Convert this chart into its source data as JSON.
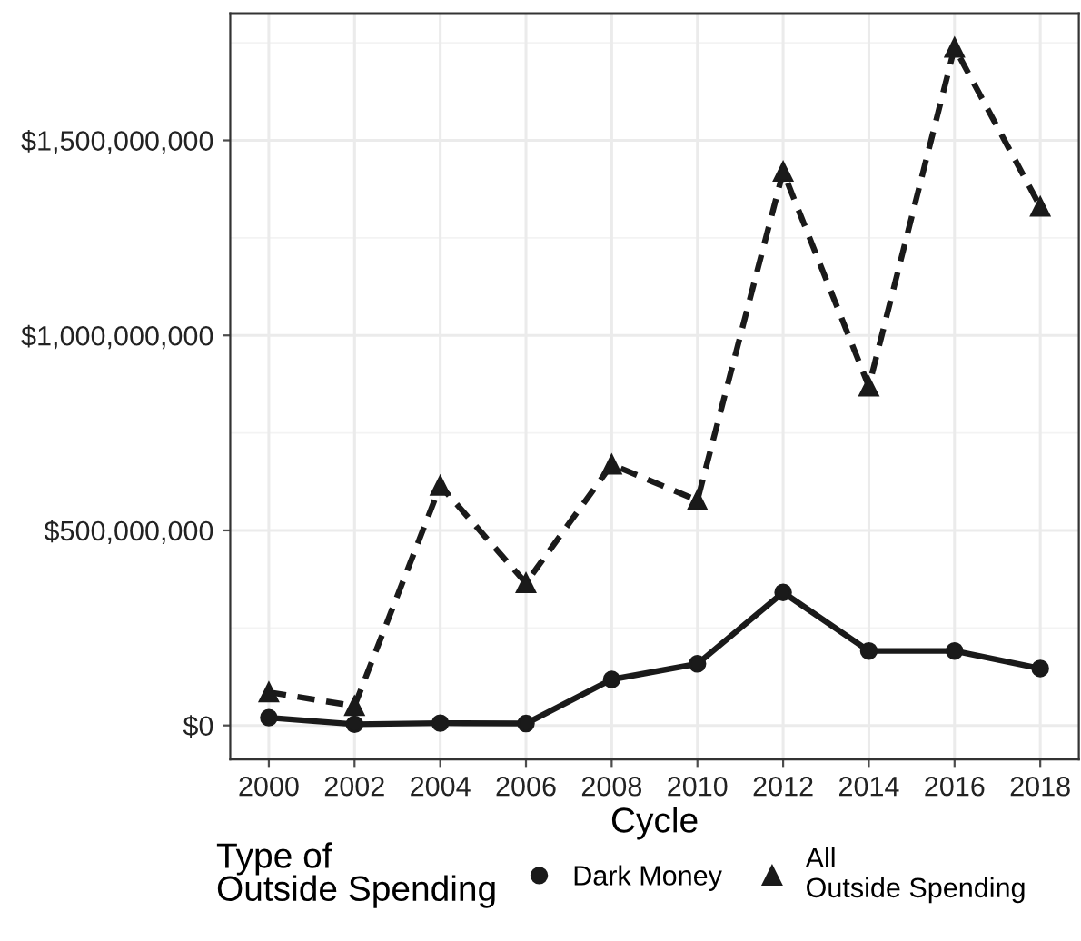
{
  "chart_data": {
    "type": "line",
    "xlabel": "Cycle",
    "legend_title": "Type of\nOutside Spending",
    "legend": "bottom",
    "grid": true,
    "x": [
      2000,
      2002,
      2004,
      2006,
      2008,
      2010,
      2012,
      2014,
      2016,
      2018
    ],
    "xlim": [
      1999.1,
      2018.9
    ],
    "xticks": [
      2000,
      2002,
      2004,
      2006,
      2008,
      2010,
      2012,
      2014,
      2016,
      2018
    ],
    "ylim": [
      -87000000,
      1826000000
    ],
    "yticks": [
      {
        "value": 0,
        "label": "$0"
      },
      {
        "value": 500000000,
        "label": "$500,000,000"
      },
      {
        "value": 1000000000,
        "label": "$1,000,000,000"
      },
      {
        "value": 1500000000,
        "label": "$1,500,000,000"
      }
    ],
    "series": [
      {
        "name": "Dark Money",
        "color": "#1a1a1a",
        "marker": "circle",
        "line_style": "solid",
        "values": [
          20000000,
          3000000,
          6000000,
          5000000,
          118000000,
          158000000,
          341000000,
          191000000,
          191000000,
          146000000
        ]
      },
      {
        "name": "All\nOutside Spending",
        "color": "#1a1a1a",
        "marker": "triangle",
        "line_style": "dashed",
        "values": [
          85000000,
          50000000,
          615000000,
          365000000,
          669000000,
          577000000,
          1420000000,
          869000000,
          1738000000,
          1330000000
        ]
      }
    ]
  }
}
